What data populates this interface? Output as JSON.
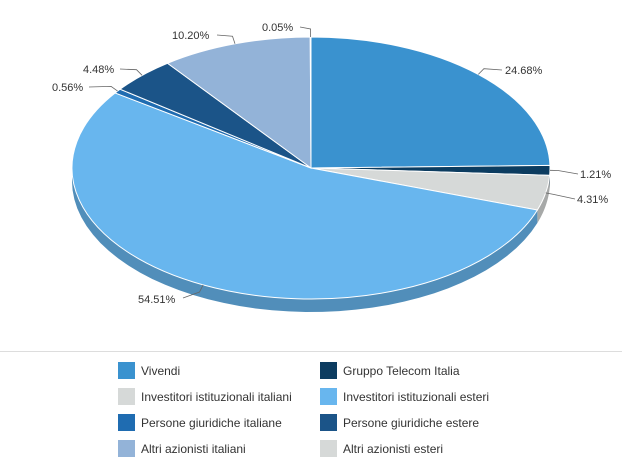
{
  "chart_data": {
    "type": "pie",
    "title": "",
    "slices": [
      {
        "name": "Vivendi",
        "value": 24.68,
        "label": "24.68%",
        "color": "#3a92cf"
      },
      {
        "name": "Gruppo Telecom Italia",
        "value": 1.21,
        "label": "1.21%",
        "color": "#0c3c60"
      },
      {
        "name": "Investitori istituzionali italiani",
        "value": 4.31,
        "label": "4.31%",
        "color": "#d6d9d8"
      },
      {
        "name": "Investitori istituzionali esteri",
        "value": 54.51,
        "label": "54.51%",
        "color": "#68b6ee"
      },
      {
        "name": "Persone giuridiche italiane",
        "value": 0.56,
        "label": "0.56%",
        "color": "#1f6cb1"
      },
      {
        "name": "Persone giuridiche estere",
        "value": 4.48,
        "label": "4.48%",
        "color": "#1b5488"
      },
      {
        "name": "Altri azionisti italiani",
        "value": 10.2,
        "label": "10.20%",
        "color": "#93b3d8"
      },
      {
        "name": "Altri azionisti esteri",
        "value": 0.05,
        "label": "0.05%",
        "color": "#d6d9d8"
      }
    ],
    "legend_position": "bottom"
  }
}
